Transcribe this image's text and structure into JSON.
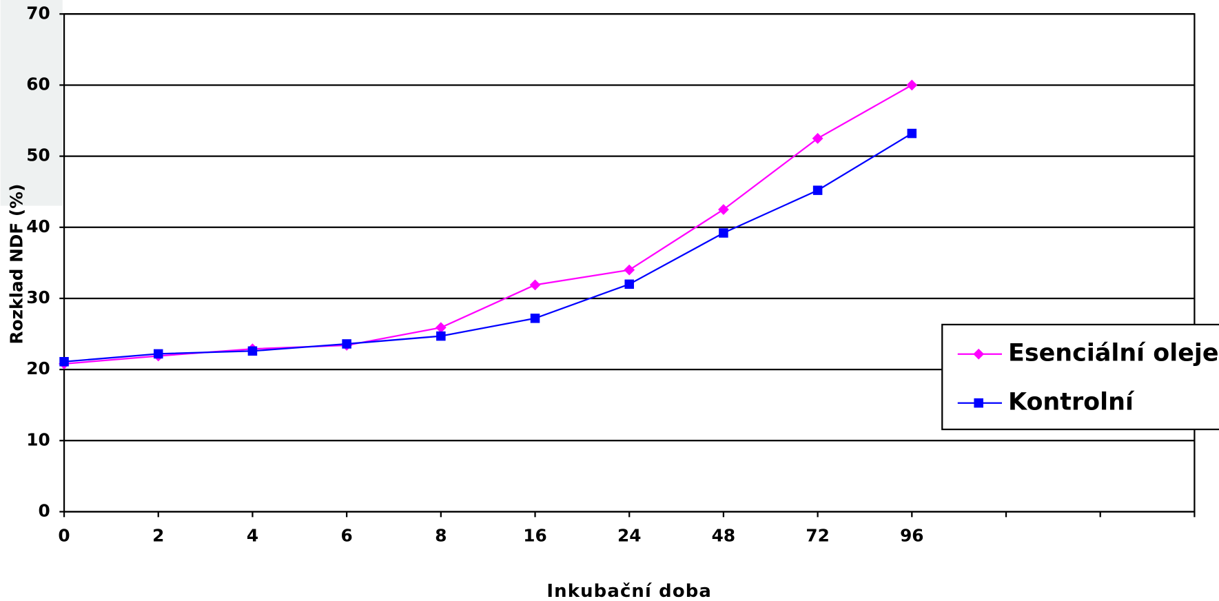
{
  "chart_data": {
    "type": "line",
    "y_label": "Rozklad NDF (%)",
    "x_label": "Inkubační doba",
    "categories": [
      "0",
      "2",
      "4",
      "6",
      "8",
      "16",
      "24",
      "48",
      "72",
      "96",
      null,
      null,
      null
    ],
    "series": [
      {
        "name": "Esenciální oleje",
        "color": "#ff00ff",
        "marker": "diamond",
        "values": [
          20.8,
          21.9,
          22.9,
          23.4,
          25.9,
          31.9,
          34.0,
          42.5,
          52.5,
          60.0,
          null,
          null,
          null
        ]
      },
      {
        "name": "Kontrolní",
        "color": "#0000ff",
        "marker": "square",
        "values": [
          21.1,
          22.2,
          22.6,
          23.6,
          24.7,
          27.2,
          32.0,
          39.2,
          45.2,
          53.2,
          null,
          null,
          null
        ]
      }
    ],
    "ylim": [
      0,
      70
    ],
    "yticks": [
      0,
      10,
      20,
      30,
      40,
      50,
      60,
      70
    ],
    "grid": true,
    "legend": "right"
  }
}
